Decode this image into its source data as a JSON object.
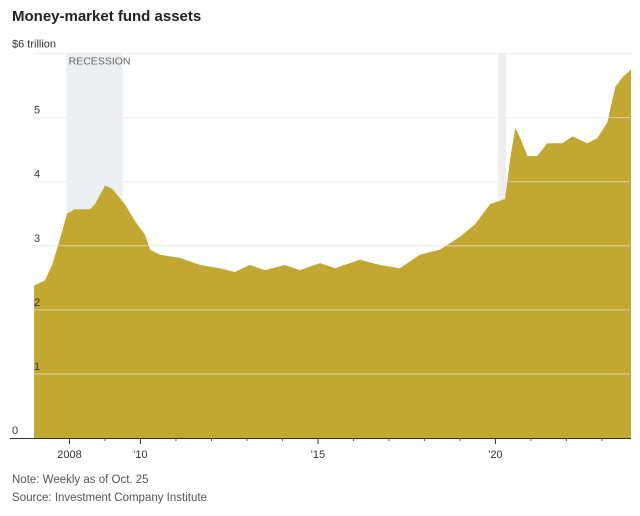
{
  "chart_data": {
    "type": "area",
    "title": "Money-market fund assets",
    "ylabel": "$6 trillion",
    "ylim": [
      0,
      6
    ],
    "xlim": [
      2007.0,
      2023.82
    ],
    "yticks": [
      0,
      1,
      2,
      3,
      4,
      5,
      6
    ],
    "ytick_labels": [
      "0",
      "1",
      "2",
      "3",
      "4",
      "5",
      "$6 trillion"
    ],
    "xticks": [
      2008,
      2010,
      2015,
      2020
    ],
    "xtick_labels": [
      "2008",
      "'10",
      "'15",
      "'20"
    ],
    "minor_xticks": [
      2009,
      2011,
      2012,
      2013,
      2014,
      2016,
      2017,
      2018,
      2019,
      2021,
      2022,
      2023
    ],
    "grid": true,
    "color": "#c2a731",
    "shading": [
      {
        "label": "RECESSION",
        "start": 2007.92,
        "end": 2009.5
      },
      {
        "label": "",
        "start": 2020.08,
        "end": 2020.3
      }
    ],
    "x": [
      2007.0,
      2007.31,
      2007.51,
      2007.73,
      2007.93,
      2008.15,
      2008.58,
      2008.72,
      2009.0,
      2009.2,
      2009.56,
      2009.85,
      2010.13,
      2010.27,
      2010.55,
      2011.11,
      2011.68,
      2012.24,
      2012.66,
      2013.08,
      2013.51,
      2014.07,
      2014.49,
      2015.06,
      2015.48,
      2016.18,
      2016.75,
      2017.31,
      2017.87,
      2018.44,
      2019.0,
      2019.42,
      2019.85,
      2020.27,
      2020.42,
      2020.56,
      2020.7,
      2020.9,
      2021.18,
      2021.46,
      2021.89,
      2022.17,
      2022.59,
      2022.87,
      2023.15,
      2023.38,
      2023.58,
      2023.82
    ],
    "values": [
      2.38,
      2.46,
      2.7,
      3.1,
      3.5,
      3.57,
      3.57,
      3.65,
      3.94,
      3.89,
      3.65,
      3.38,
      3.17,
      2.94,
      2.86,
      2.81,
      2.7,
      2.65,
      2.59,
      2.7,
      2.62,
      2.7,
      2.62,
      2.73,
      2.65,
      2.78,
      2.7,
      2.65,
      2.86,
      2.94,
      3.14,
      3.33,
      3.65,
      3.73,
      4.37,
      4.84,
      4.68,
      4.4,
      4.4,
      4.6,
      4.6,
      4.71,
      4.6,
      4.68,
      4.92,
      5.48,
      5.63,
      5.75
    ]
  },
  "footer": {
    "note": "Note: Weekly as of Oct. 25",
    "source": "Source: Investment Company Institute"
  }
}
